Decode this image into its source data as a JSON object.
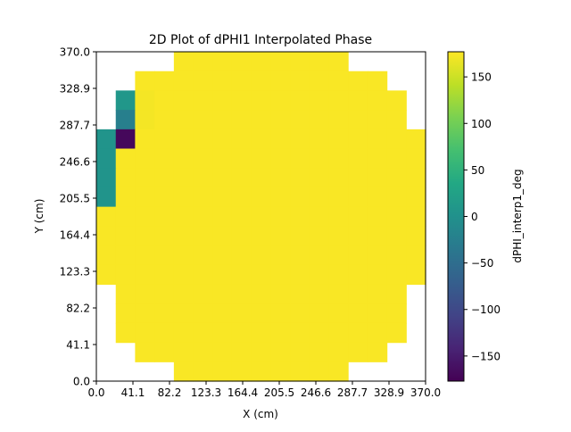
{
  "chart_data": {
    "type": "heatmap",
    "title": "2D Plot of dPHI1 Interpolated Phase",
    "xlabel": "X (cm)",
    "ylabel": "Y (cm)",
    "xlim": [
      0.0,
      370.0
    ],
    "ylim": [
      0.0,
      370.0
    ],
    "x_ticks": [
      "0.0",
      "41.1",
      "82.2",
      "123.3",
      "164.4",
      "205.5",
      "246.6",
      "287.7",
      "328.9",
      "370.0"
    ],
    "y_ticks": [
      "0.0",
      "41.1",
      "82.2",
      "123.3",
      "164.4",
      "205.5",
      "246.6",
      "287.7",
      "328.9",
      "370.0"
    ],
    "grid": false,
    "colormap": "viridis",
    "colorbar": {
      "label": "dPHI_interp1_deg",
      "range": [
        -177,
        177
      ],
      "ticks": [
        "150",
        "100",
        "50",
        "0",
        "−50",
        "−100",
        "−150"
      ],
      "tick_values": [
        150,
        100,
        50,
        0,
        -50,
        -100,
        -150
      ]
    },
    "grid_x_edges": [
      0.0,
      21.8,
      43.5,
      65.3,
      87.1,
      108.8,
      130.6,
      152.4,
      174.1,
      195.9,
      217.6,
      239.4,
      261.2,
      282.9,
      304.7,
      326.5,
      348.2,
      370.0
    ],
    "grid_y_edges": [
      0.0,
      21.8,
      43.5,
      65.3,
      87.1,
      108.8,
      130.6,
      152.4,
      174.1,
      195.9,
      217.6,
      239.4,
      261.2,
      282.9,
      304.7,
      326.5,
      348.2,
      370.0
    ],
    "values_top_to_bottom": [
      [
        null,
        null,
        null,
        null,
        175,
        175,
        175,
        175,
        175,
        175,
        175,
        175,
        175,
        null,
        null,
        null,
        null
      ],
      [
        null,
        null,
        175,
        175,
        175,
        175,
        175,
        175,
        175,
        175,
        175,
        175,
        175,
        175,
        175,
        null,
        null
      ],
      [
        null,
        10,
        172,
        175,
        175,
        175,
        175,
        175,
        175,
        175,
        175,
        175,
        175,
        175,
        175,
        175,
        null
      ],
      [
        null,
        -25,
        172,
        175,
        175,
        175,
        175,
        175,
        175,
        175,
        175,
        175,
        175,
        175,
        175,
        175,
        null
      ],
      [
        5,
        -170,
        175,
        175,
        175,
        175,
        175,
        175,
        175,
        175,
        175,
        175,
        175,
        175,
        175,
        175,
        175
      ],
      [
        5,
        175,
        175,
        175,
        175,
        175,
        175,
        175,
        175,
        175,
        175,
        175,
        175,
        175,
        175,
        175,
        175
      ],
      [
        5,
        175,
        175,
        175,
        175,
        175,
        175,
        175,
        175,
        175,
        175,
        175,
        175,
        175,
        175,
        175,
        175
      ],
      [
        5,
        175,
        175,
        175,
        175,
        175,
        175,
        175,
        175,
        175,
        175,
        175,
        175,
        175,
        175,
        175,
        175
      ],
      [
        175,
        175,
        175,
        175,
        175,
        175,
        175,
        175,
        175,
        175,
        175,
        175,
        175,
        175,
        175,
        175,
        175
      ],
      [
        175,
        175,
        175,
        175,
        175,
        175,
        175,
        175,
        175,
        175,
        175,
        175,
        175,
        175,
        175,
        175,
        175
      ],
      [
        175,
        175,
        175,
        175,
        175,
        175,
        175,
        175,
        175,
        175,
        175,
        175,
        175,
        175,
        175,
        175,
        175
      ],
      [
        175,
        175,
        175,
        175,
        175,
        175,
        175,
        175,
        175,
        175,
        175,
        175,
        175,
        175,
        175,
        175,
        175
      ],
      [
        null,
        175,
        175,
        175,
        175,
        175,
        175,
        175,
        175,
        175,
        175,
        175,
        175,
        175,
        175,
        175,
        null
      ],
      [
        null,
        175,
        175,
        175,
        175,
        175,
        175,
        175,
        175,
        175,
        175,
        175,
        175,
        175,
        175,
        175,
        null
      ],
      [
        null,
        175,
        175,
        175,
        175,
        175,
        175,
        175,
        175,
        175,
        175,
        175,
        175,
        175,
        175,
        175,
        null
      ],
      [
        null,
        null,
        175,
        175,
        175,
        175,
        175,
        175,
        175,
        175,
        175,
        175,
        175,
        175,
        175,
        null,
        null
      ],
      [
        null,
        null,
        null,
        null,
        175,
        175,
        175,
        175,
        175,
        175,
        175,
        175,
        175,
        null,
        null,
        null,
        null
      ]
    ]
  }
}
